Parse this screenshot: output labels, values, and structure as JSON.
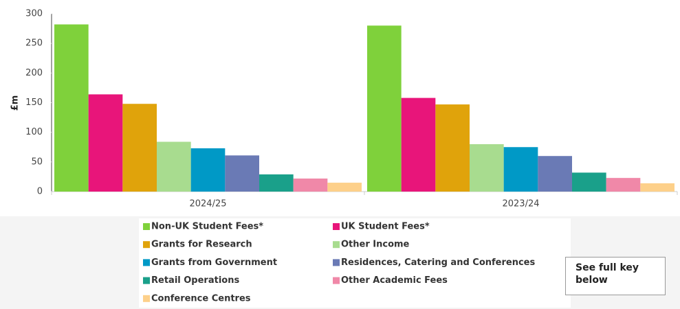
{
  "chart_data": {
    "type": "bar",
    "y_label": "£m",
    "categories": [
      "2024/25",
      "2023/24"
    ],
    "series": [
      {
        "name": "Non-UK Student Fees*",
        "color": "#7fd13b",
        "values": [
          282,
          280
        ]
      },
      {
        "name": "UK Student Fees*",
        "color": "#e8157a",
        "values": [
          164,
          158
        ]
      },
      {
        "name": "Grants for Research",
        "color": "#e0a30b",
        "values": [
          148,
          147
        ]
      },
      {
        "name": "Other Income",
        "color": "#a8dc8f",
        "values": [
          84,
          80
        ]
      },
      {
        "name": "Grants from Government",
        "color": "#0099c6",
        "values": [
          73,
          75
        ]
      },
      {
        "name": "Residences, Catering and Conferences",
        "color": "#6a7ab5",
        "values": [
          61,
          60
        ]
      },
      {
        "name": "Retail Operations",
        "color": "#1aa08a",
        "values": [
          29,
          32
        ]
      },
      {
        "name": "Other Academic Fees",
        "color": "#f088a8",
        "values": [
          22,
          23
        ]
      },
      {
        "name": "Conference Centres",
        "color": "#fdd08a",
        "values": [
          15,
          14
        ]
      }
    ],
    "ylim": [
      0,
      300
    ],
    "yticks": [
      0,
      50,
      100,
      150,
      200,
      250,
      300
    ],
    "grid": false,
    "key_note": "See full key below"
  }
}
